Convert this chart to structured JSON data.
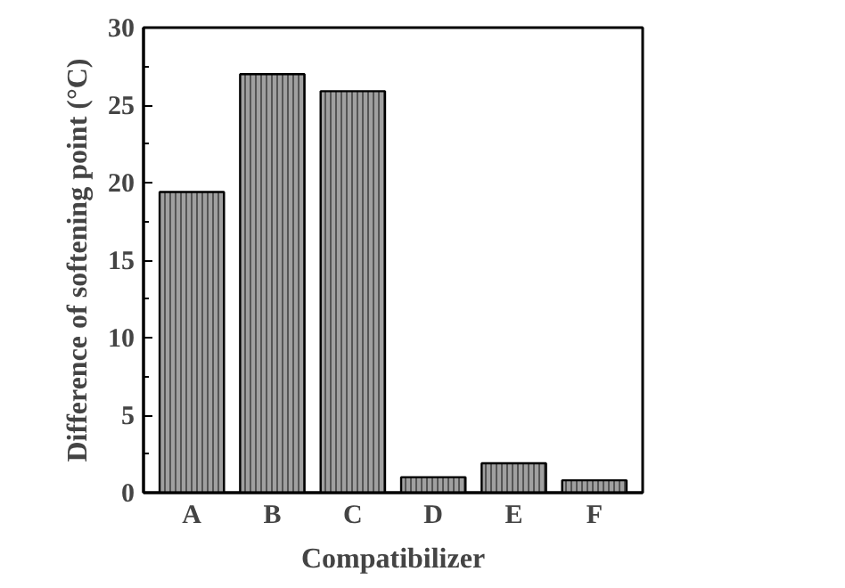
{
  "chart_data": {
    "type": "bar",
    "xlabel": "Compatibilizer",
    "ylabel": "Difference of softening point (°C)",
    "categories": [
      "A",
      "B",
      "C",
      "D",
      "E",
      "F"
    ],
    "values": [
      19.4,
      27.0,
      25.9,
      1.0,
      1.9,
      0.8
    ],
    "color": "#a0a0a0",
    "ylim": [
      0,
      30
    ],
    "yticks": [
      0,
      5,
      10,
      15,
      20,
      25,
      30
    ],
    "grid": false
  }
}
